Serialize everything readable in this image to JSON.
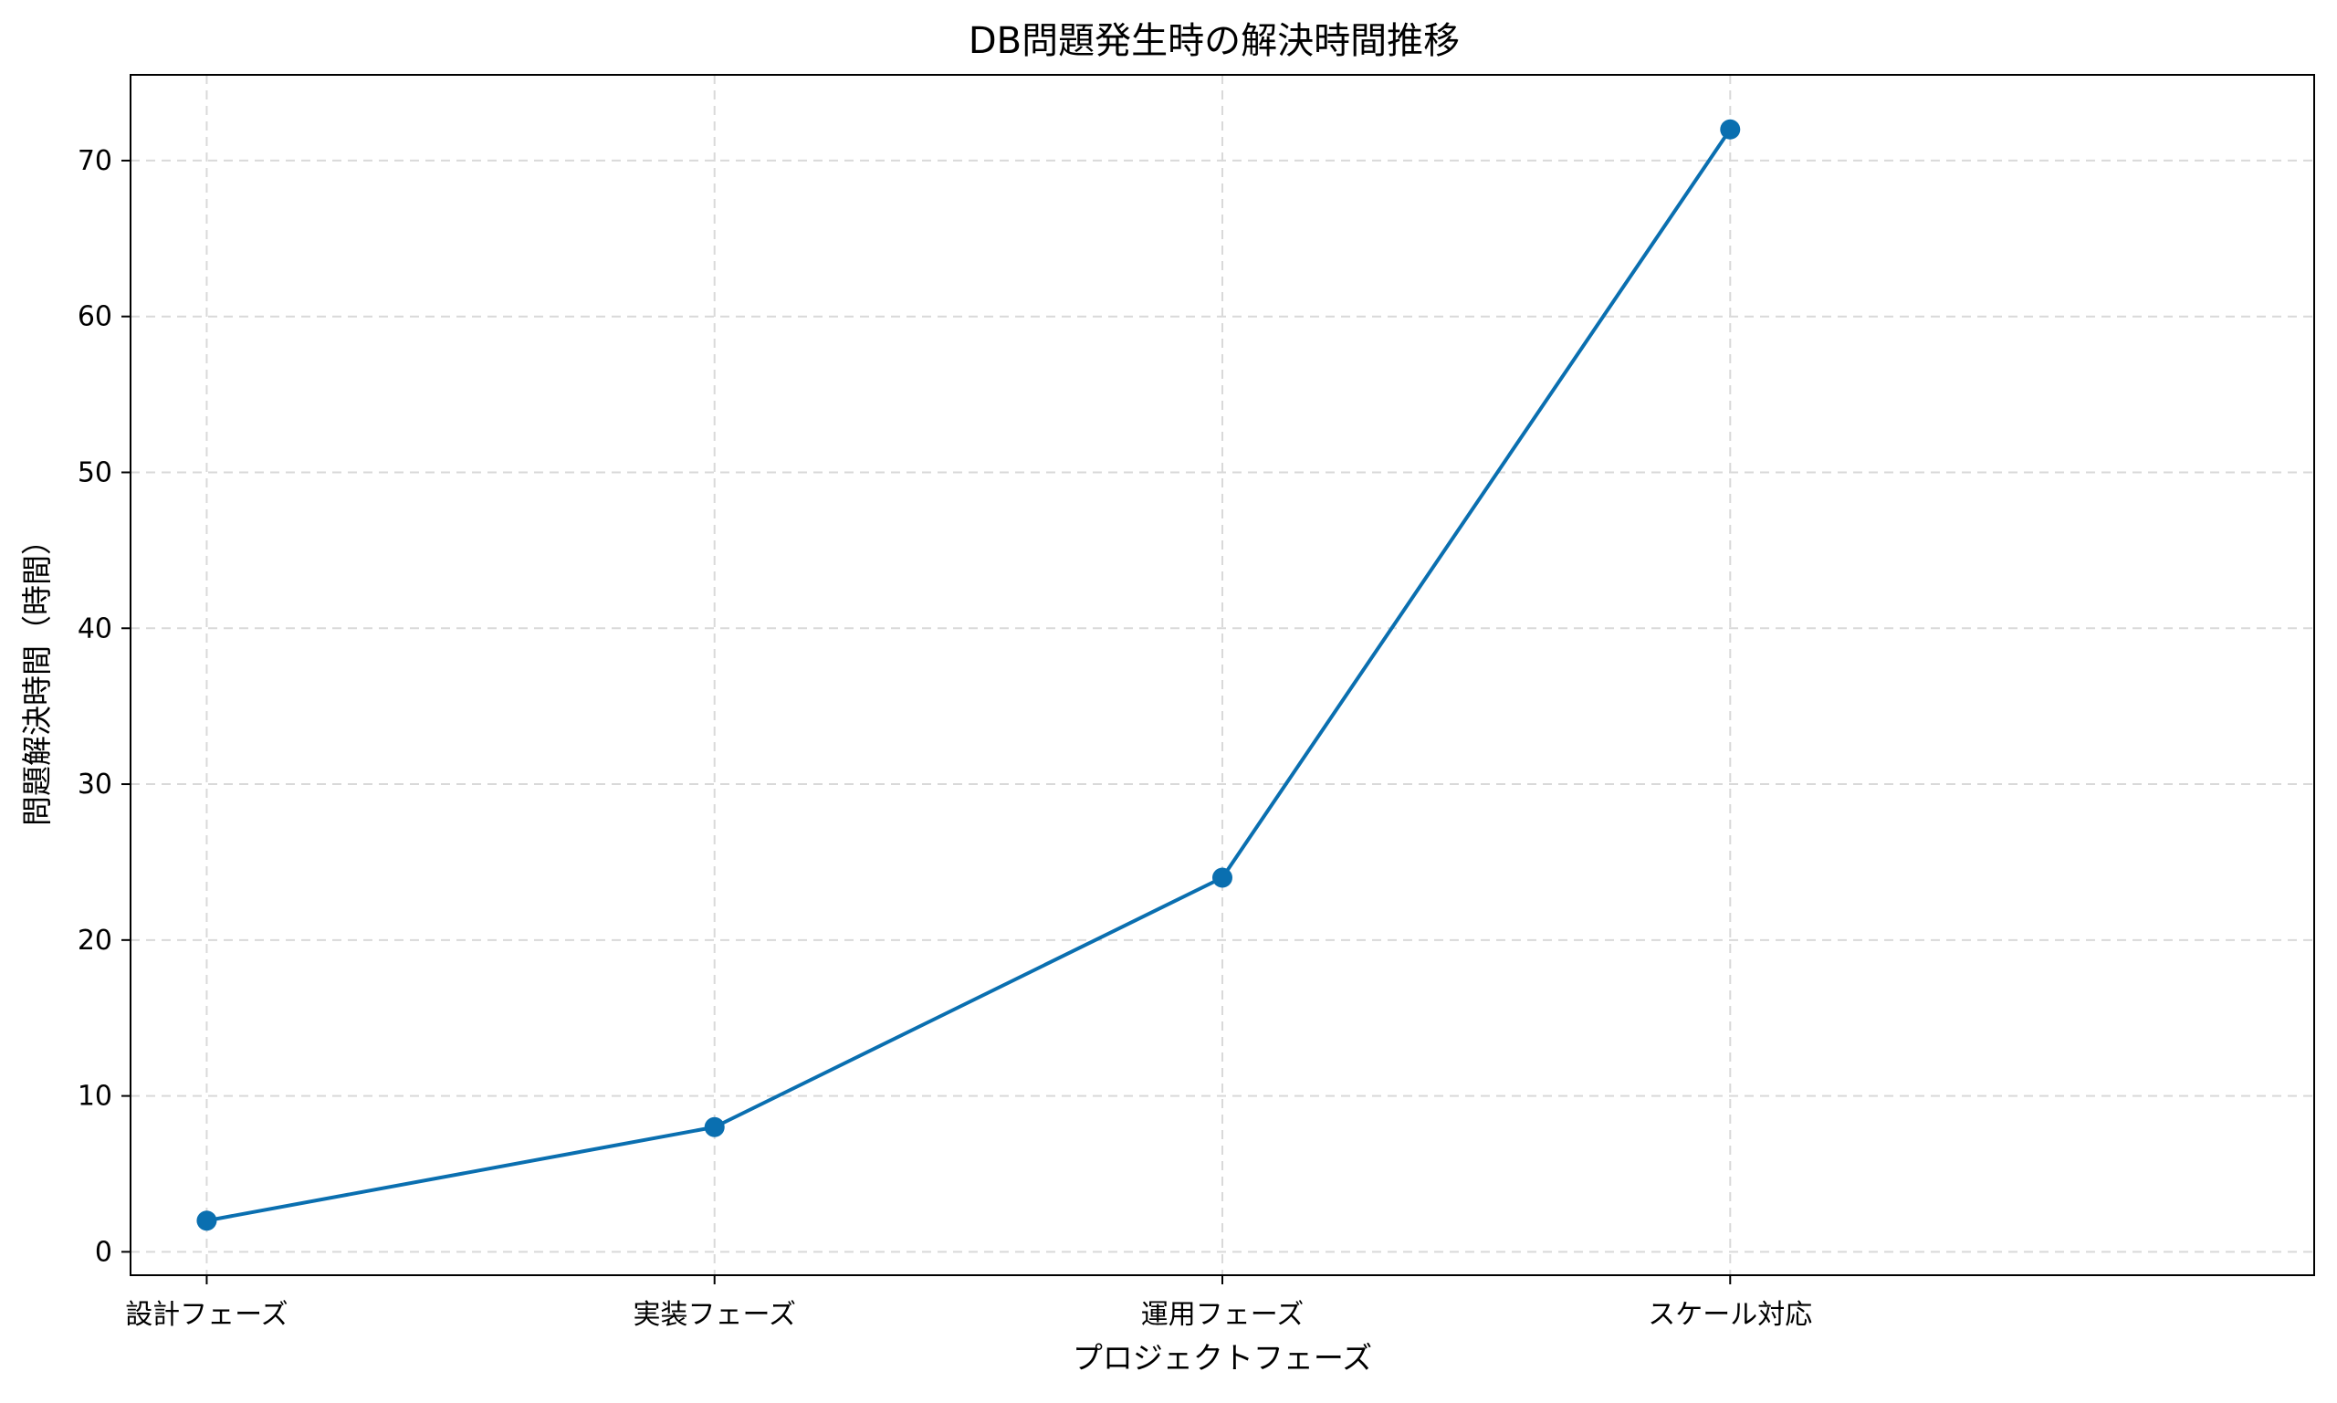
{
  "chart_data": {
    "type": "line",
    "title": "DB問題発生時の解決時間推移",
    "xlabel": "プロジェクトフェーズ",
    "ylabel": "問題解決時間（時間）",
    "categories": [
      "設計フェーズ",
      "実装フェーズ",
      "運用フェーズ",
      "スケール対応"
    ],
    "series": [
      {
        "values": [
          2,
          8,
          24,
          72
        ]
      }
    ],
    "ylim": [
      -1.5,
      75.5
    ],
    "yticks": [
      0,
      10,
      20,
      30,
      40,
      50,
      60,
      70
    ],
    "grid": true,
    "marker": "circle",
    "line_color": "#0a6fb0"
  }
}
